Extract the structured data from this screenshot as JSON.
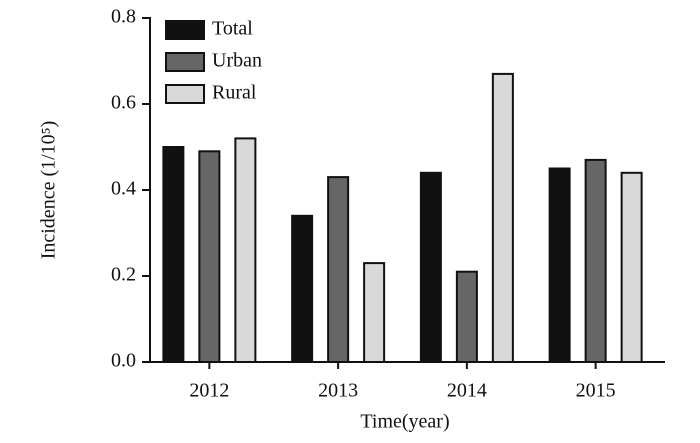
{
  "chart_data": {
    "type": "bar",
    "x_label": "Time(year)",
    "y_label": "Incidence (1/10⁵)",
    "categories": [
      "2012",
      "2013",
      "2014",
      "2015"
    ],
    "series": [
      {
        "name": "Total",
        "color": "#111111",
        "values": [
          0.5,
          0.34,
          0.44,
          0.45
        ]
      },
      {
        "name": "Urban",
        "color": "#666666",
        "values": [
          0.49,
          0.43,
          0.21,
          0.47
        ]
      },
      {
        "name": "Rural",
        "color": "#d9d9d9",
        "values": [
          0.52,
          0.23,
          0.67,
          0.44
        ]
      }
    ],
    "ylim": [
      0,
      0.8
    ],
    "yticks": [
      {
        "value": 0,
        "label": "0.0"
      },
      0.2,
      0.4,
      0.6,
      0.8
    ],
    "legend": "top-left"
  }
}
